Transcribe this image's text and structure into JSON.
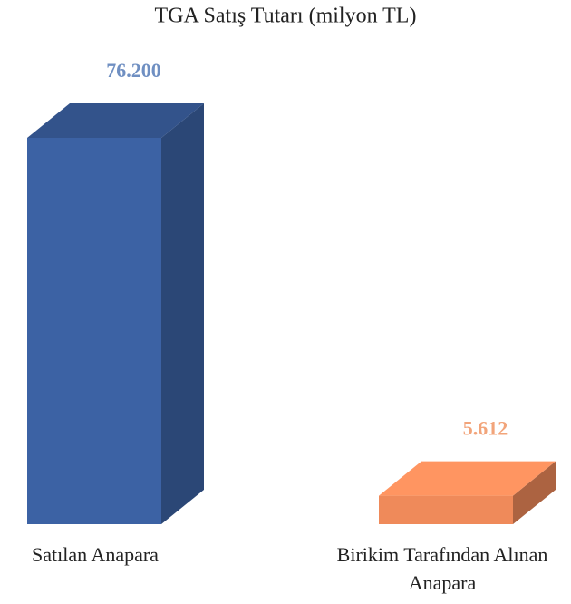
{
  "chart_data": {
    "type": "bar3d",
    "title": "TGA Satış Tutarı (milyon TL)",
    "categories": [
      "Satılan Anapara",
      "Birikim Tarafından Alınan Anapara"
    ],
    "values": [
      76200,
      5612
    ],
    "value_labels": [
      "76.200",
      "5.612"
    ],
    "colors": [
      "#3c62a4",
      "#ef8a5a"
    ]
  }
}
